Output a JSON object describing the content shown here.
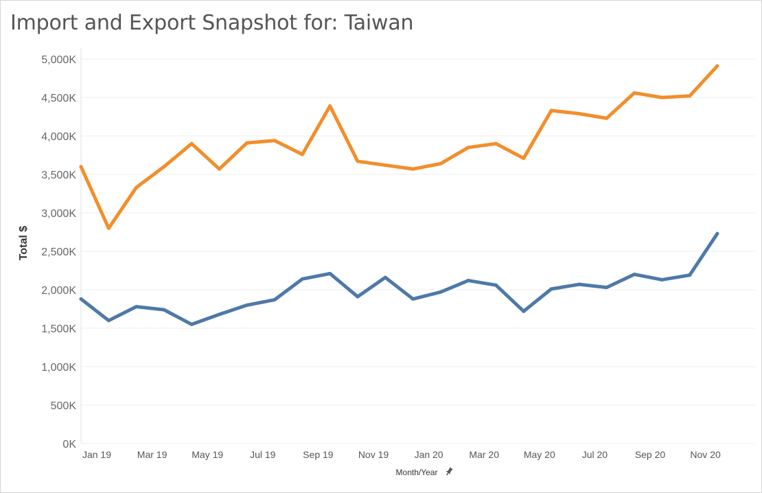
{
  "title": "Import and Export Snapshot for: Taiwan",
  "chart_data": {
    "type": "line",
    "title": "Import and Export Snapshot for: Taiwan",
    "xlabel": "Month/Year",
    "ylabel": "Total $",
    "ylim": [
      0,
      5000
    ],
    "y_ticks": [
      "0K",
      "500K",
      "1,000K",
      "1,500K",
      "2,000K",
      "2,500K",
      "3,000K",
      "3,500K",
      "4,000K",
      "4,500K",
      "5,000K"
    ],
    "x_tick_labels": [
      "Jan 19",
      "Mar 19",
      "May 19",
      "Jul 19",
      "Sep 19",
      "Nov 19",
      "Jan 20",
      "Mar 20",
      "May 20",
      "Jul 20",
      "Sep 20",
      "Nov 20"
    ],
    "categories": [
      "Jan 19",
      "Feb 19",
      "Mar 19",
      "Apr 19",
      "May 19",
      "Jun 19",
      "Jul 19",
      "Aug 19",
      "Sep 19",
      "Oct 19",
      "Nov 19",
      "Dec 19",
      "Jan 20",
      "Feb 20",
      "Mar 20",
      "Apr 20",
      "May 20",
      "Jun 20",
      "Jul 20",
      "Aug 20",
      "Sep 20",
      "Oct 20",
      "Nov 20",
      "Dec 20"
    ],
    "grid": true,
    "series": [
      {
        "color": "#f28e2b",
        "values": [
          3600,
          2800,
          3330,
          3600,
          3900,
          3570,
          3910,
          3940,
          3760,
          4390,
          3670,
          3620,
          3570,
          3640,
          3850,
          3900,
          3710,
          4330,
          4290,
          4230,
          4560,
          4500,
          4520,
          4910
        ]
      },
      {
        "color": "#4e79a7",
        "values": [
          1880,
          1600,
          1780,
          1740,
          1550,
          1680,
          1800,
          1870,
          2140,
          2210,
          1910,
          2160,
          1880,
          1970,
          2120,
          2060,
          1720,
          2010,
          2070,
          2030,
          2200,
          2130,
          2190,
          2730
        ]
      }
    ]
  }
}
